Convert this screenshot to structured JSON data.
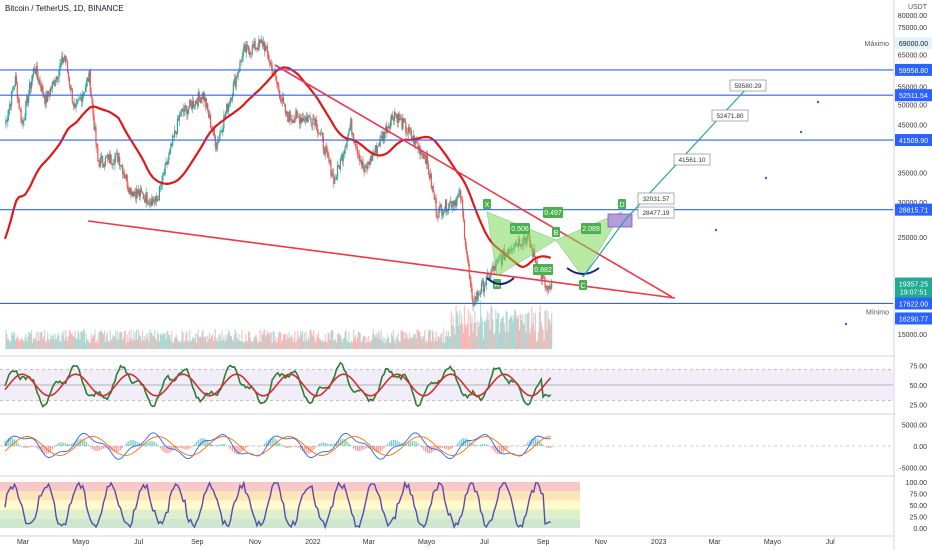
{
  "header": {
    "title": "Bitcoin / TetherUS, 1D, BINANCE",
    "currency": "USDT"
  },
  "colors": {
    "candle_up": "#26a69a",
    "candle_down": "#ef5350",
    "level_line": "#2962ff",
    "trend_line": "#f23645",
    "ma_line": "#e01818",
    "pattern_fill": "#7ed957",
    "pattern_badge": "#4caf50",
    "rsi_line": "#2e7d32",
    "rsi_ma": "#d32f2f",
    "macd_line": "#2962ff",
    "signal_line": "#ff6d00",
    "stoch_line": "#5b4aa8",
    "projection_line": "#26a69a",
    "target_box": "#b39ddb"
  },
  "chart_data": [
    {
      "type": "candlestick",
      "title": "Bitcoin / TetherUS, 1D, BINANCE",
      "x_tick_labels": [
        "Mar",
        "Mayo",
        "Jul",
        "Sep",
        "Nov",
        "2022",
        "Mar",
        "Mayo",
        "Jul",
        "Sep",
        "Nov",
        "2023",
        "Mar",
        "Mayo",
        "Jul"
      ],
      "y_scale": "log",
      "y_tick_labels": [
        "80000.00",
        "75000.00",
        "65000.00",
        "55000.00",
        "50000.00",
        "45000.00",
        "35000.00",
        "30000.00",
        "25000.00",
        "20000.00",
        "15000.00",
        "5000.00"
      ],
      "price_path": [
        [
          "2021-02-10",
          45000
        ],
        [
          "2021-02-21",
          57000
        ],
        [
          "2021-02-28",
          45000
        ],
        [
          "2021-03-13",
          61000
        ],
        [
          "2021-03-25",
          51000
        ],
        [
          "2021-04-14",
          64500
        ],
        [
          "2021-04-25",
          48000
        ],
        [
          "2021-05-10",
          58000
        ],
        [
          "2021-05-19",
          37000
        ],
        [
          "2021-06-10",
          38000
        ],
        [
          "2021-06-22",
          32000
        ],
        [
          "2021-07-20",
          30000
        ],
        [
          "2021-08-14",
          47500
        ],
        [
          "2021-09-07",
          52800
        ],
        [
          "2021-09-21",
          40500
        ],
        [
          "2021-10-20",
          66000
        ],
        [
          "2021-11-10",
          69000
        ],
        [
          "2021-11-26",
          54000
        ],
        [
          "2021-12-04",
          47000
        ],
        [
          "2022-01-03",
          46500
        ],
        [
          "2022-01-24",
          33500
        ],
        [
          "2022-02-10",
          45000
        ],
        [
          "2022-02-24",
          35000
        ],
        [
          "2022-03-28",
          48000
        ],
        [
          "2022-04-30",
          38000
        ],
        [
          "2022-05-12",
          28500
        ],
        [
          "2022-06-06",
          31000
        ],
        [
          "2022-06-18",
          17622
        ],
        [
          "2022-07-10",
          21000
        ],
        [
          "2022-07-30",
          24000
        ],
        [
          "2022-08-15",
          25000
        ],
        [
          "2022-09-06",
          18600
        ],
        [
          "2022-09-10",
          19357
        ]
      ],
      "volume_note": "volume bars along bottom of price pane"
    },
    {
      "type": "pattern",
      "points": [
        {
          "label": "X",
          "value": 31800
        },
        {
          "label": "A",
          "value": 17622
        },
        {
          "label": "B",
          "value": 25000
        },
        {
          "label": "C",
          "value": 18600
        },
        {
          "label": "D",
          "value": 32031.57
        }
      ],
      "ratios": [
        "0.506",
        "0.497",
        "0.882",
        "2.089"
      ]
    },
    {
      "type": "line",
      "name": "RSI",
      "y_tick_labels": [
        "75.00",
        "50.00",
        "25.00"
      ],
      "ylim": [
        15,
        85
      ],
      "bands": [
        30,
        50,
        70
      ]
    },
    {
      "type": "line",
      "name": "MACD",
      "y_tick_labels": [
        "5000.00",
        "0.00",
        "-5000.00"
      ],
      "ylim": [
        -6500,
        6500
      ]
    },
    {
      "type": "line",
      "name": "Stochastic",
      "y_tick_labels": [
        "100.00",
        "75.00",
        "50.00",
        "25.00",
        "0.00"
      ],
      "ylim": [
        0,
        100
      ]
    }
  ],
  "levels": [
    {
      "price": 59958.8,
      "label": "59958.80"
    },
    {
      "price": 52511.54,
      "label": "52511.54"
    },
    {
      "price": 41509.9,
      "label": "41509.90"
    },
    {
      "price": 28815.71,
      "label": "28815.71"
    },
    {
      "price": 17622.0,
      "label": "17622.00"
    }
  ],
  "current_price": {
    "price": 19357.25,
    "label": "19357.25",
    "countdown": "19:07:51"
  },
  "max": {
    "label": "Máximo",
    "price": 69000.0,
    "value_label": "69000.00"
  },
  "min": {
    "label": "Mínimo",
    "price": 16290.77,
    "value_label": "16290.77"
  },
  "targets": [
    {
      "price": 59580.29,
      "label": "59580.29"
    },
    {
      "price": 52471.8,
      "label": "52471.80"
    },
    {
      "price": 41561.1,
      "label": "41561.10"
    },
    {
      "price": 32031.57,
      "label": "32031.57"
    },
    {
      "price": 28477.19,
      "label": "28477.19"
    }
  ]
}
